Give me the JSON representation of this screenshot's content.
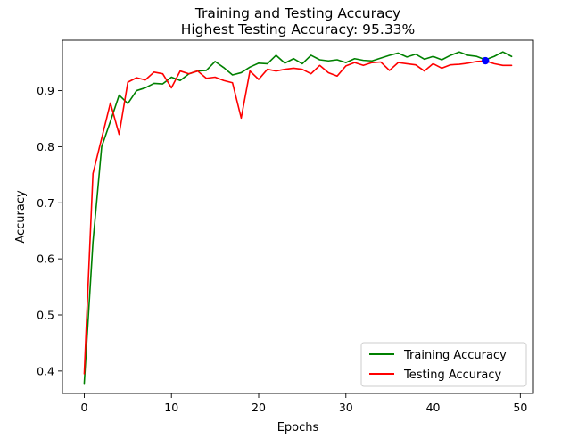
{
  "chart_data": {
    "type": "line",
    "title": "Training and Testing Accuracy",
    "subtitle": "Highest Testing Accuracy: 95.33%",
    "xlabel": "Epochs",
    "ylabel": "Accuracy",
    "xlim": [
      -2.5,
      51.5
    ],
    "ylim": [
      0.36,
      0.99
    ],
    "xticks": [
      0,
      10,
      20,
      30,
      40,
      50
    ],
    "yticks": [
      0.4,
      0.5,
      0.6,
      0.7,
      0.8,
      0.9
    ],
    "xtick_labels": [
      "0",
      "10",
      "20",
      "30",
      "40",
      "50"
    ],
    "ytick_labels": [
      "0.4",
      "0.5",
      "0.6",
      "0.7",
      "0.8",
      "0.9"
    ],
    "grid": false,
    "legend_position": "bottom-right",
    "x": [
      0,
      1,
      2,
      3,
      4,
      5,
      6,
      7,
      8,
      9,
      10,
      11,
      12,
      13,
      14,
      15,
      16,
      17,
      18,
      19,
      20,
      21,
      22,
      23,
      24,
      25,
      26,
      27,
      28,
      29,
      30,
      31,
      32,
      33,
      34,
      35,
      36,
      37,
      38,
      39,
      40,
      41,
      42,
      43,
      44,
      45,
      46,
      47,
      48,
      49
    ],
    "series": [
      {
        "name": "Training Accuracy",
        "color": "#008000",
        "values": [
          0.378,
          0.63,
          0.8,
          0.845,
          0.892,
          0.877,
          0.9,
          0.905,
          0.913,
          0.912,
          0.924,
          0.918,
          0.93,
          0.935,
          0.936,
          0.952,
          0.941,
          0.928,
          0.932,
          0.942,
          0.949,
          0.948,
          0.963,
          0.949,
          0.957,
          0.948,
          0.963,
          0.955,
          0.953,
          0.955,
          0.95,
          0.957,
          0.954,
          0.953,
          0.958,
          0.963,
          0.967,
          0.96,
          0.965,
          0.956,
          0.961,
          0.955,
          0.963,
          0.969,
          0.963,
          0.961,
          0.955,
          0.961,
          0.969,
          0.961
        ]
      },
      {
        "name": "Testing Accuracy",
        "color": "#ff0000",
        "values": [
          0.395,
          0.752,
          0.815,
          0.878,
          0.822,
          0.915,
          0.923,
          0.919,
          0.933,
          0.93,
          0.905,
          0.935,
          0.93,
          0.935,
          0.922,
          0.924,
          0.918,
          0.914,
          0.851,
          0.935,
          0.92,
          0.938,
          0.935,
          0.938,
          0.94,
          0.938,
          0.93,
          0.945,
          0.932,
          0.926,
          0.944,
          0.95,
          0.945,
          0.95,
          0.951,
          0.936,
          0.95,
          0.948,
          0.946,
          0.935,
          0.948,
          0.94,
          0.946,
          0.947,
          0.949,
          0.952,
          0.953,
          0.948,
          0.945,
          0.945
        ]
      }
    ],
    "highlight_point": {
      "x": 46,
      "y": 0.9533,
      "color": "#0000ff"
    }
  }
}
